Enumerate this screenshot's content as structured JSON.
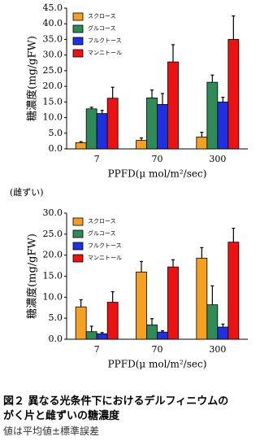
{
  "chart_data": [
    {
      "type": "bar",
      "y_label": "糖濃度(mg/gFW)",
      "x_label": "PPFD(μ mol/m²/sec)",
      "categories": [
        "7",
        "70",
        "300"
      ],
      "ylim": [
        0,
        45
      ],
      "yticks": [
        {
          "value": 0,
          "label": "0.0"
        },
        {
          "value": 5,
          "label": "5.0"
        },
        {
          "value": 10,
          "label": "10.0"
        },
        {
          "value": 15,
          "label": "15.0"
        },
        {
          "value": 20,
          "label": "20.0"
        },
        {
          "value": 25,
          "label": "25.0"
        },
        {
          "value": 30,
          "label": "30.0"
        },
        {
          "value": 35,
          "label": "35.0"
        },
        {
          "value": 40,
          "label": "40.0"
        },
        {
          "value": 45,
          "label": "45.0"
        }
      ],
      "series": [
        {
          "name": "スクロース",
          "color": "#f5a020",
          "values": [
            2.0,
            2.7,
            3.8
          ],
          "errors": [
            0.3,
            0.8,
            1.5
          ]
        },
        {
          "name": "グルコース",
          "color": "#2e8b57",
          "values": [
            12.8,
            16.3,
            21.3
          ],
          "errors": [
            0.5,
            2.5,
            2.3
          ]
        },
        {
          "name": "フルクトース",
          "color": "#2030e0",
          "values": [
            11.3,
            14.2,
            15.0
          ],
          "errors": [
            1.0,
            3.5,
            1.5
          ]
        },
        {
          "name": "マンニトール",
          "color": "#ee1111",
          "values": [
            16.2,
            27.8,
            35.0
          ],
          "errors": [
            3.5,
            5.5,
            7.5
          ]
        }
      ]
    },
    {
      "type": "bar",
      "y_label": "糖濃度(mg/gFW)",
      "x_label": "PPFD(μ mol/m²/sec)",
      "categories": [
        "7",
        "70",
        "300"
      ],
      "ylim": [
        0,
        30
      ],
      "yticks": [
        {
          "value": 0,
          "label": "0.0"
        },
        {
          "value": 5,
          "label": "5.0"
        },
        {
          "value": 10,
          "label": "10.0"
        },
        {
          "value": 15,
          "label": "15.0"
        },
        {
          "value": 20,
          "label": "20.0"
        },
        {
          "value": 25,
          "label": "25.0"
        },
        {
          "value": 30,
          "label": "30.0"
        }
      ],
      "series": [
        {
          "name": "スクロース",
          "color": "#f5a020",
          "values": [
            7.7,
            16.0,
            19.3
          ],
          "errors": [
            1.7,
            2.5,
            2.5
          ]
        },
        {
          "name": "グルコース",
          "color": "#2e8b57",
          "values": [
            1.8,
            3.4,
            8.2
          ],
          "errors": [
            1.3,
            1.5,
            4.5
          ]
        },
        {
          "name": "フルクトース",
          "color": "#2030e0",
          "values": [
            1.3,
            1.7,
            2.9
          ],
          "errors": [
            0.3,
            0.3,
            0.7
          ]
        },
        {
          "name": "マンニトール",
          "color": "#ee1111",
          "values": [
            8.8,
            17.2,
            23.1
          ],
          "errors": [
            2.5,
            1.7,
            3.3
          ]
        }
      ]
    }
  ],
  "section_label": "(雌ずい)",
  "caption": {
    "lines": [
      "図２ 異なる光条件下におけるデルフィニウムの",
      "がく片と雌ずいの糖濃度"
    ],
    "note": "値は平均値±標準誤差"
  }
}
